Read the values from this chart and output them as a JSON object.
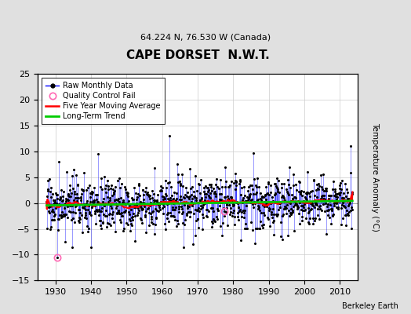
{
  "title": "CAPE DORSET  N.W.T.",
  "subtitle": "64.224 N, 76.530 W (Canada)",
  "ylabel": "Temperature Anomaly (°C)",
  "xlabel_credit": "Berkeley Earth",
  "year_start": 1925.0,
  "year_end": 2015.0,
  "ylim": [
    -15,
    25
  ],
  "yticks": [
    -15,
    -10,
    -5,
    0,
    5,
    10,
    15,
    20,
    25
  ],
  "xticks": [
    1930,
    1940,
    1950,
    1960,
    1970,
    1980,
    1990,
    2000,
    2010
  ],
  "bg_color": "#e0e0e0",
  "plot_bg_color": "#ffffff",
  "grid_color": "#cccccc",
  "seed": 17
}
